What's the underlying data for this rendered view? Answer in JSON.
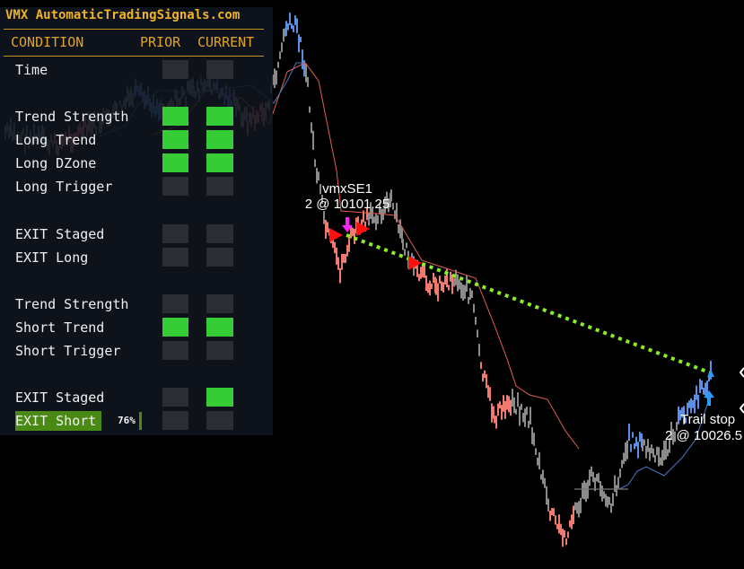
{
  "panel": {
    "title": "VMX AutomaticTradingSignals.com",
    "headers": {
      "condition": "CONDITION",
      "prior": "PRIOR",
      "current": "CURRENT"
    },
    "rows": [
      {
        "label": "Time",
        "prior": false,
        "current": false
      },
      {
        "label": "Trend Strength",
        "prior": true,
        "current": true
      },
      {
        "label": "Long Trend",
        "prior": true,
        "current": true
      },
      {
        "label": "Long DZone",
        "prior": true,
        "current": true
      },
      {
        "label": "Long Trigger",
        "prior": false,
        "current": false
      },
      {
        "label": "EXIT Staged",
        "prior": false,
        "current": false
      },
      {
        "label": "EXIT Long",
        "prior": false,
        "current": false
      },
      {
        "label": "Trend Strength",
        "prior": false,
        "current": false
      },
      {
        "label": "Short Trend",
        "prior": true,
        "current": true
      },
      {
        "label": "Short Trigger",
        "prior": false,
        "current": false
      },
      {
        "label": "EXIT Staged",
        "prior": false,
        "current": true
      },
      {
        "label": "EXIT Short",
        "prior": false,
        "current": false,
        "highlight": true,
        "progress": "76%"
      }
    ]
  },
  "annotations": {
    "entry_name": "vmxSE1",
    "entry_fill": "2 @ 10101.25",
    "exit_name": "Trail stop",
    "exit_fill": "2 @ 10026.5"
  },
  "colors": {
    "accent": "#f0b323",
    "active": "#36cc36",
    "inactive": "#2a2d33",
    "up_bar": "#5b8fe6",
    "down_bar": "#f07a70",
    "neutral_bar": "#8a8a8a",
    "trade_line": "#88ee22",
    "entry_marker": "#ff1010",
    "entry_arrow": "#ff22ff",
    "exit_arrow": "#2a9cff"
  }
}
